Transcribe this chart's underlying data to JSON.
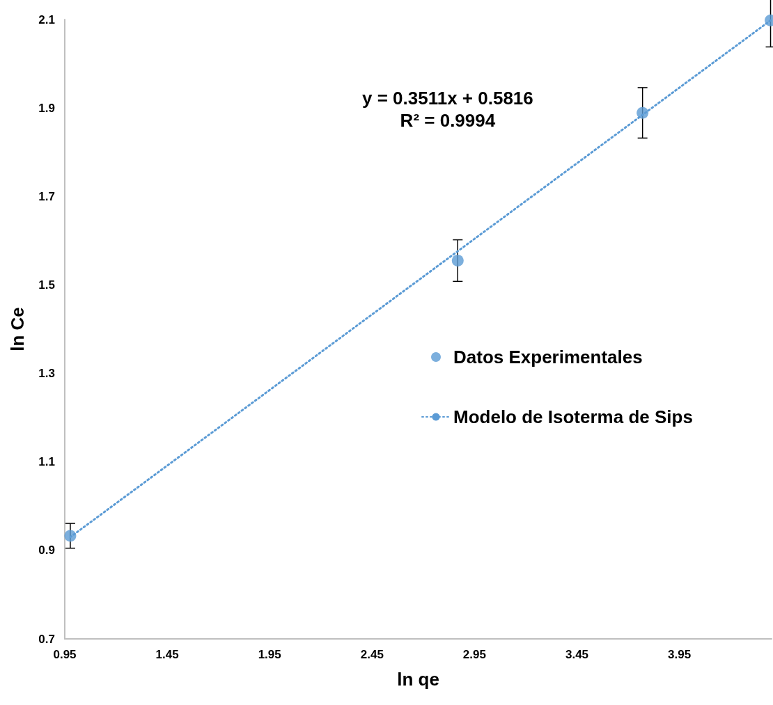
{
  "chart_data": {
    "type": "scatter",
    "xlabel": "ln qe",
    "ylabel": "ln Ce",
    "annotations": [
      "y = 0.3511x + 0.5816\nR² = 0.9994"
    ],
    "xlim": [
      0.95,
      4.4
    ],
    "xticks": [
      0.95,
      1.45,
      1.95,
      2.45,
      2.95,
      3.45,
      3.95
    ],
    "ylim": [
      0.7,
      2.1
    ],
    "yticks": [
      0.7,
      0.9,
      1.1,
      1.3,
      1.5,
      1.7,
      1.9,
      2.1
    ],
    "grid": false,
    "legend": "right",
    "series": [
      {
        "name": "Datos Experimentales",
        "color": "#5b9bd5",
        "marker": "circle",
        "x": [
          0.977,
          2.868,
          3.77,
          4.395
        ],
        "values": [
          0.933,
          1.555,
          1.889,
          2.098
        ],
        "errors": [
          0.028,
          0.047,
          0.057,
          0.06
        ]
      },
      {
        "name": "Modelo de Isoterma de Sips",
        "type": "line",
        "color": "#5b9bd5",
        "marker": "none",
        "line_style": "dotted",
        "x": [
          0.977,
          4.395
        ],
        "values": [
          0.93,
          2.098
        ]
      }
    ]
  }
}
